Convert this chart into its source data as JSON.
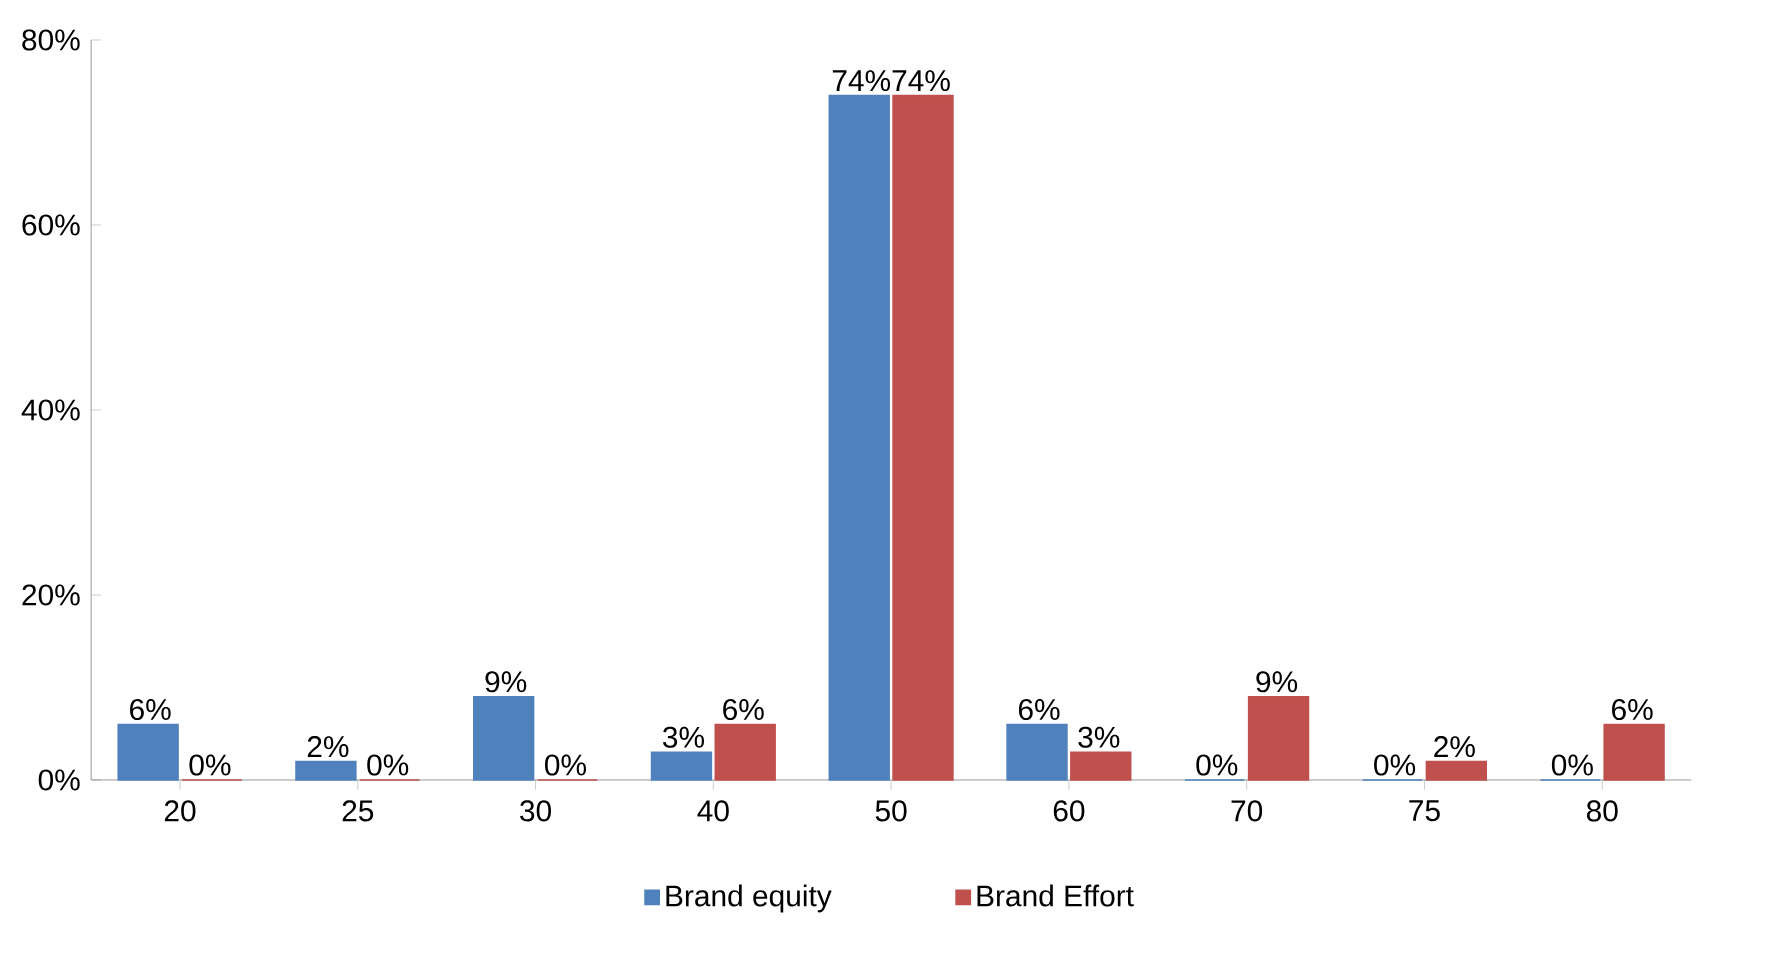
{
  "chart_data": {
    "type": "bar",
    "categories": [
      "20",
      "25",
      "30",
      "40",
      "50",
      "60",
      "70",
      "75",
      "80"
    ],
    "series": [
      {
        "name": "Brand equity",
        "color": "#4f81bd",
        "values": [
          6,
          2,
          9,
          3,
          74,
          6,
          0,
          0,
          0
        ],
        "value_labels": [
          "6%",
          "2%",
          "9%",
          "3%",
          "74%",
          "6%",
          "0%",
          "0%",
          "0%"
        ]
      },
      {
        "name": "Brand Effort",
        "color": "#c0504d",
        "values": [
          0,
          0,
          0,
          6,
          74,
          3,
          9,
          2,
          6
        ],
        "value_labels": [
          "0%",
          "0%",
          "0%",
          "6%",
          "74%",
          "3%",
          "9%",
          "2%",
          "6%"
        ]
      }
    ],
    "ylim": [
      0,
      80
    ],
    "yticks": [
      {
        "value": 0,
        "label": "0%"
      },
      {
        "value": 20,
        "label": "20%"
      },
      {
        "value": 40,
        "label": "40%"
      },
      {
        "value": 60,
        "label": "60%"
      },
      {
        "value": 80,
        "label": "80%"
      }
    ],
    "grid": false,
    "legend": "bottom"
  }
}
